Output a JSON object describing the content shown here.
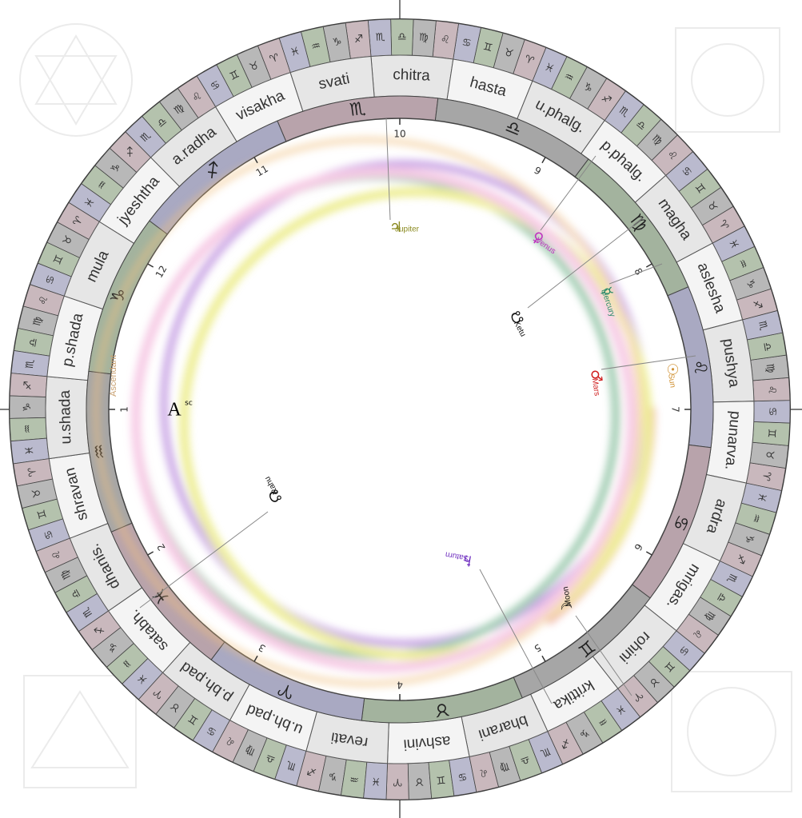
{
  "nakshatras": [
    "chitra",
    "hasta",
    "u.phalg.",
    "p.phalg.",
    "magha",
    "aslesha",
    "pushya",
    "punarva.",
    "ardra",
    "mrigas.",
    "rohini",
    "krittika",
    "bharani",
    "ashvini",
    "revati",
    "u.bh.pad",
    "p.bh.pad",
    "satabh.",
    "dhanis.",
    "shravan",
    "u.shada",
    "p.shada",
    "mula",
    "jyeshtha",
    "a.radha",
    "visakha",
    "svati"
  ],
  "signs": [
    "♈",
    "♉",
    "♊",
    "♋",
    "♌",
    "♍",
    "♎",
    "♏",
    "♐",
    "♑",
    "♒",
    "♓"
  ],
  "houses": [
    "1",
    "2",
    "3",
    "4",
    "5",
    "6",
    "7",
    "8",
    "9",
    "10",
    "11",
    "12"
  ],
  "planets": [
    {
      "glyph": "♃",
      "name": "Jupiter"
    },
    {
      "glyph": "♀",
      "name": "Venus"
    },
    {
      "glyph": "☿",
      "name": "Mercury"
    },
    {
      "glyph": "☋",
      "name": "Ketu"
    },
    {
      "glyph": "♂",
      "name": "Mars"
    },
    {
      "glyph": "☉",
      "name": "Sun"
    },
    {
      "glyph": "♄",
      "name": "Saturn"
    },
    {
      "glyph": "☽",
      "name": "Moon"
    },
    {
      "glyph": "☊",
      "name": "Rahu"
    }
  ],
  "ascendant": {
    "marker": "A",
    "sup": "sc",
    "label": "Ascendant"
  }
}
